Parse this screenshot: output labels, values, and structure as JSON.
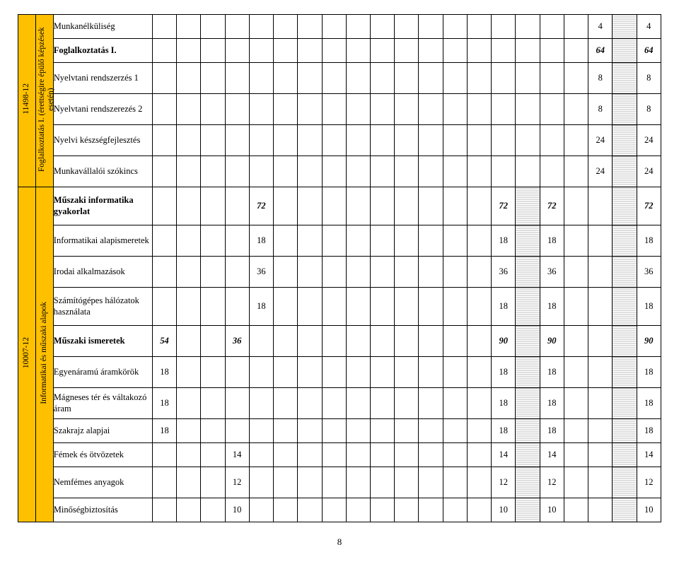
{
  "side_groups": [
    {
      "code": "11498-12",
      "title": "Foglalkoztatás I. (érettségire épülő képzések esetén)"
    },
    {
      "code": "10007-12",
      "title": "Informatikai és műszaki alapok"
    }
  ],
  "rows": [
    {
      "label": "Munkanélküliség",
      "bold": false,
      "height": "rh",
      "cells": [
        "",
        "",
        "",
        "",
        "",
        "",
        "",
        "",
        "",
        "",
        "",
        "",
        "",
        "",
        "",
        "",
        "",
        "",
        "4",
        "H",
        "4"
      ]
    },
    {
      "label": "Foglalkoztatás I.",
      "bold": true,
      "height": "rh",
      "cells": [
        "",
        "",
        "",
        "",
        "",
        "",
        "",
        "",
        "",
        "",
        "",
        "",
        "",
        "",
        "",
        "",
        "",
        "",
        "64",
        "H",
        "64"
      ],
      "boldnums": true
    },
    {
      "label": "Nyelvtani rendszerzés 1",
      "bold": false,
      "height": "rh2",
      "cells": [
        "",
        "",
        "",
        "",
        "",
        "",
        "",
        "",
        "",
        "",
        "",
        "",
        "",
        "",
        "",
        "",
        "",
        "",
        "8",
        "H",
        "8"
      ]
    },
    {
      "label": "Nyelvtani rendszerezés 2",
      "bold": false,
      "height": "rh2",
      "cells": [
        "",
        "",
        "",
        "",
        "",
        "",
        "",
        "",
        "",
        "",
        "",
        "",
        "",
        "",
        "",
        "",
        "",
        "",
        "8",
        "H",
        "8"
      ]
    },
    {
      "label": "Nyelvi készségfejlesztés",
      "bold": false,
      "height": "rh2",
      "cells": [
        "",
        "",
        "",
        "",
        "",
        "",
        "",
        "",
        "",
        "",
        "",
        "",
        "",
        "",
        "",
        "",
        "",
        "",
        "24",
        "H",
        "24"
      ]
    },
    {
      "label": "Munkavállalói szókincs",
      "bold": false,
      "height": "rh2",
      "cells": [
        "",
        "",
        "",
        "",
        "",
        "",
        "",
        "",
        "",
        "",
        "",
        "",
        "",
        "",
        "",
        "",
        "",
        "",
        "24",
        "H",
        "24"
      ]
    },
    {
      "label": "Műszaki informatika gyakorlat",
      "bold": true,
      "height": "rh3",
      "cells": [
        "",
        "",
        "",
        "",
        "72",
        "",
        "",
        "",
        "",
        "",
        "",
        "",
        "",
        "",
        "72",
        "H",
        "72",
        "",
        "",
        "H",
        "72"
      ],
      "boldnums": true
    },
    {
      "label": "Informatikai alapismeretek",
      "bold": false,
      "height": "rh2",
      "cells": [
        "",
        "",
        "",
        "",
        "18",
        "",
        "",
        "",
        "",
        "",
        "",
        "",
        "",
        "",
        "18",
        "H",
        "18",
        "",
        "",
        "H",
        "18"
      ]
    },
    {
      "label": "Irodai alkalmazások",
      "bold": false,
      "height": "rh2",
      "cells": [
        "",
        "",
        "",
        "",
        "36",
        "",
        "",
        "",
        "",
        "",
        "",
        "",
        "",
        "",
        "36",
        "H",
        "36",
        "",
        "",
        "H",
        "36"
      ]
    },
    {
      "label": "Számítógépes hálózatok használata",
      "bold": false,
      "height": "rh3",
      "cells": [
        "",
        "",
        "",
        "",
        "18",
        "",
        "",
        "",
        "",
        "",
        "",
        "",
        "",
        "",
        "18",
        "H",
        "18",
        "",
        "",
        "H",
        "18"
      ]
    },
    {
      "label": "Műszaki ismeretek",
      "bold": true,
      "height": "rh2",
      "cells": [
        "54",
        "",
        "",
        "36",
        "",
        "",
        "",
        "",
        "",
        "",
        "",
        "",
        "",
        "",
        "90",
        "H",
        "90",
        "",
        "",
        "H",
        "90"
      ],
      "boldnums": true
    },
    {
      "label": "Egyenáramú áramkörök",
      "bold": false,
      "height": "rh2",
      "cells": [
        "18",
        "",
        "",
        "",
        "",
        "",
        "",
        "",
        "",
        "",
        "",
        "",
        "",
        "",
        "18",
        "H",
        "18",
        "",
        "",
        "H",
        "18"
      ]
    },
    {
      "label": "Mágneses tér és váltakozó áram",
      "bold": false,
      "height": "rh2",
      "cells": [
        "18",
        "",
        "",
        "",
        "",
        "",
        "",
        "",
        "",
        "",
        "",
        "",
        "",
        "",
        "18",
        "H",
        "18",
        "",
        "",
        "H",
        "18"
      ]
    },
    {
      "label": "Szakrajz alapjai",
      "bold": false,
      "height": "rh",
      "cells": [
        "18",
        "",
        "",
        "",
        "",
        "",
        "",
        "",
        "",
        "",
        "",
        "",
        "",
        "",
        "18",
        "H",
        "18",
        "",
        "",
        "H",
        "18"
      ]
    },
    {
      "label": "Fémek és ötvözetek",
      "bold": false,
      "height": "rh",
      "cells": [
        "",
        "",
        "",
        "14",
        "",
        "",
        "",
        "",
        "",
        "",
        "",
        "",
        "",
        "",
        "14",
        "H",
        "14",
        "",
        "",
        "H",
        "14"
      ]
    },
    {
      "label": "Nemfémes anyagok",
      "bold": false,
      "height": "rh2",
      "cells": [
        "",
        "",
        "",
        "12",
        "",
        "",
        "",
        "",
        "",
        "",
        "",
        "",
        "",
        "",
        "12",
        "H",
        "12",
        "",
        "",
        "H",
        "12"
      ]
    },
    {
      "label": "Minőségbiztosítás",
      "bold": false,
      "height": "rh",
      "cells": [
        "",
        "",
        "",
        "10",
        "",
        "",
        "",
        "",
        "",
        "",
        "",
        "",
        "",
        "",
        "10",
        "H",
        "10",
        "",
        "",
        "H",
        "10"
      ]
    }
  ],
  "group1_rows": 6,
  "group2_rows": 11,
  "page_number": "8",
  "colors": {
    "side_bg": "#ffc000",
    "hatch": "#bfbfbf",
    "border": "#000000",
    "text": "#000000",
    "bg": "#ffffff"
  }
}
